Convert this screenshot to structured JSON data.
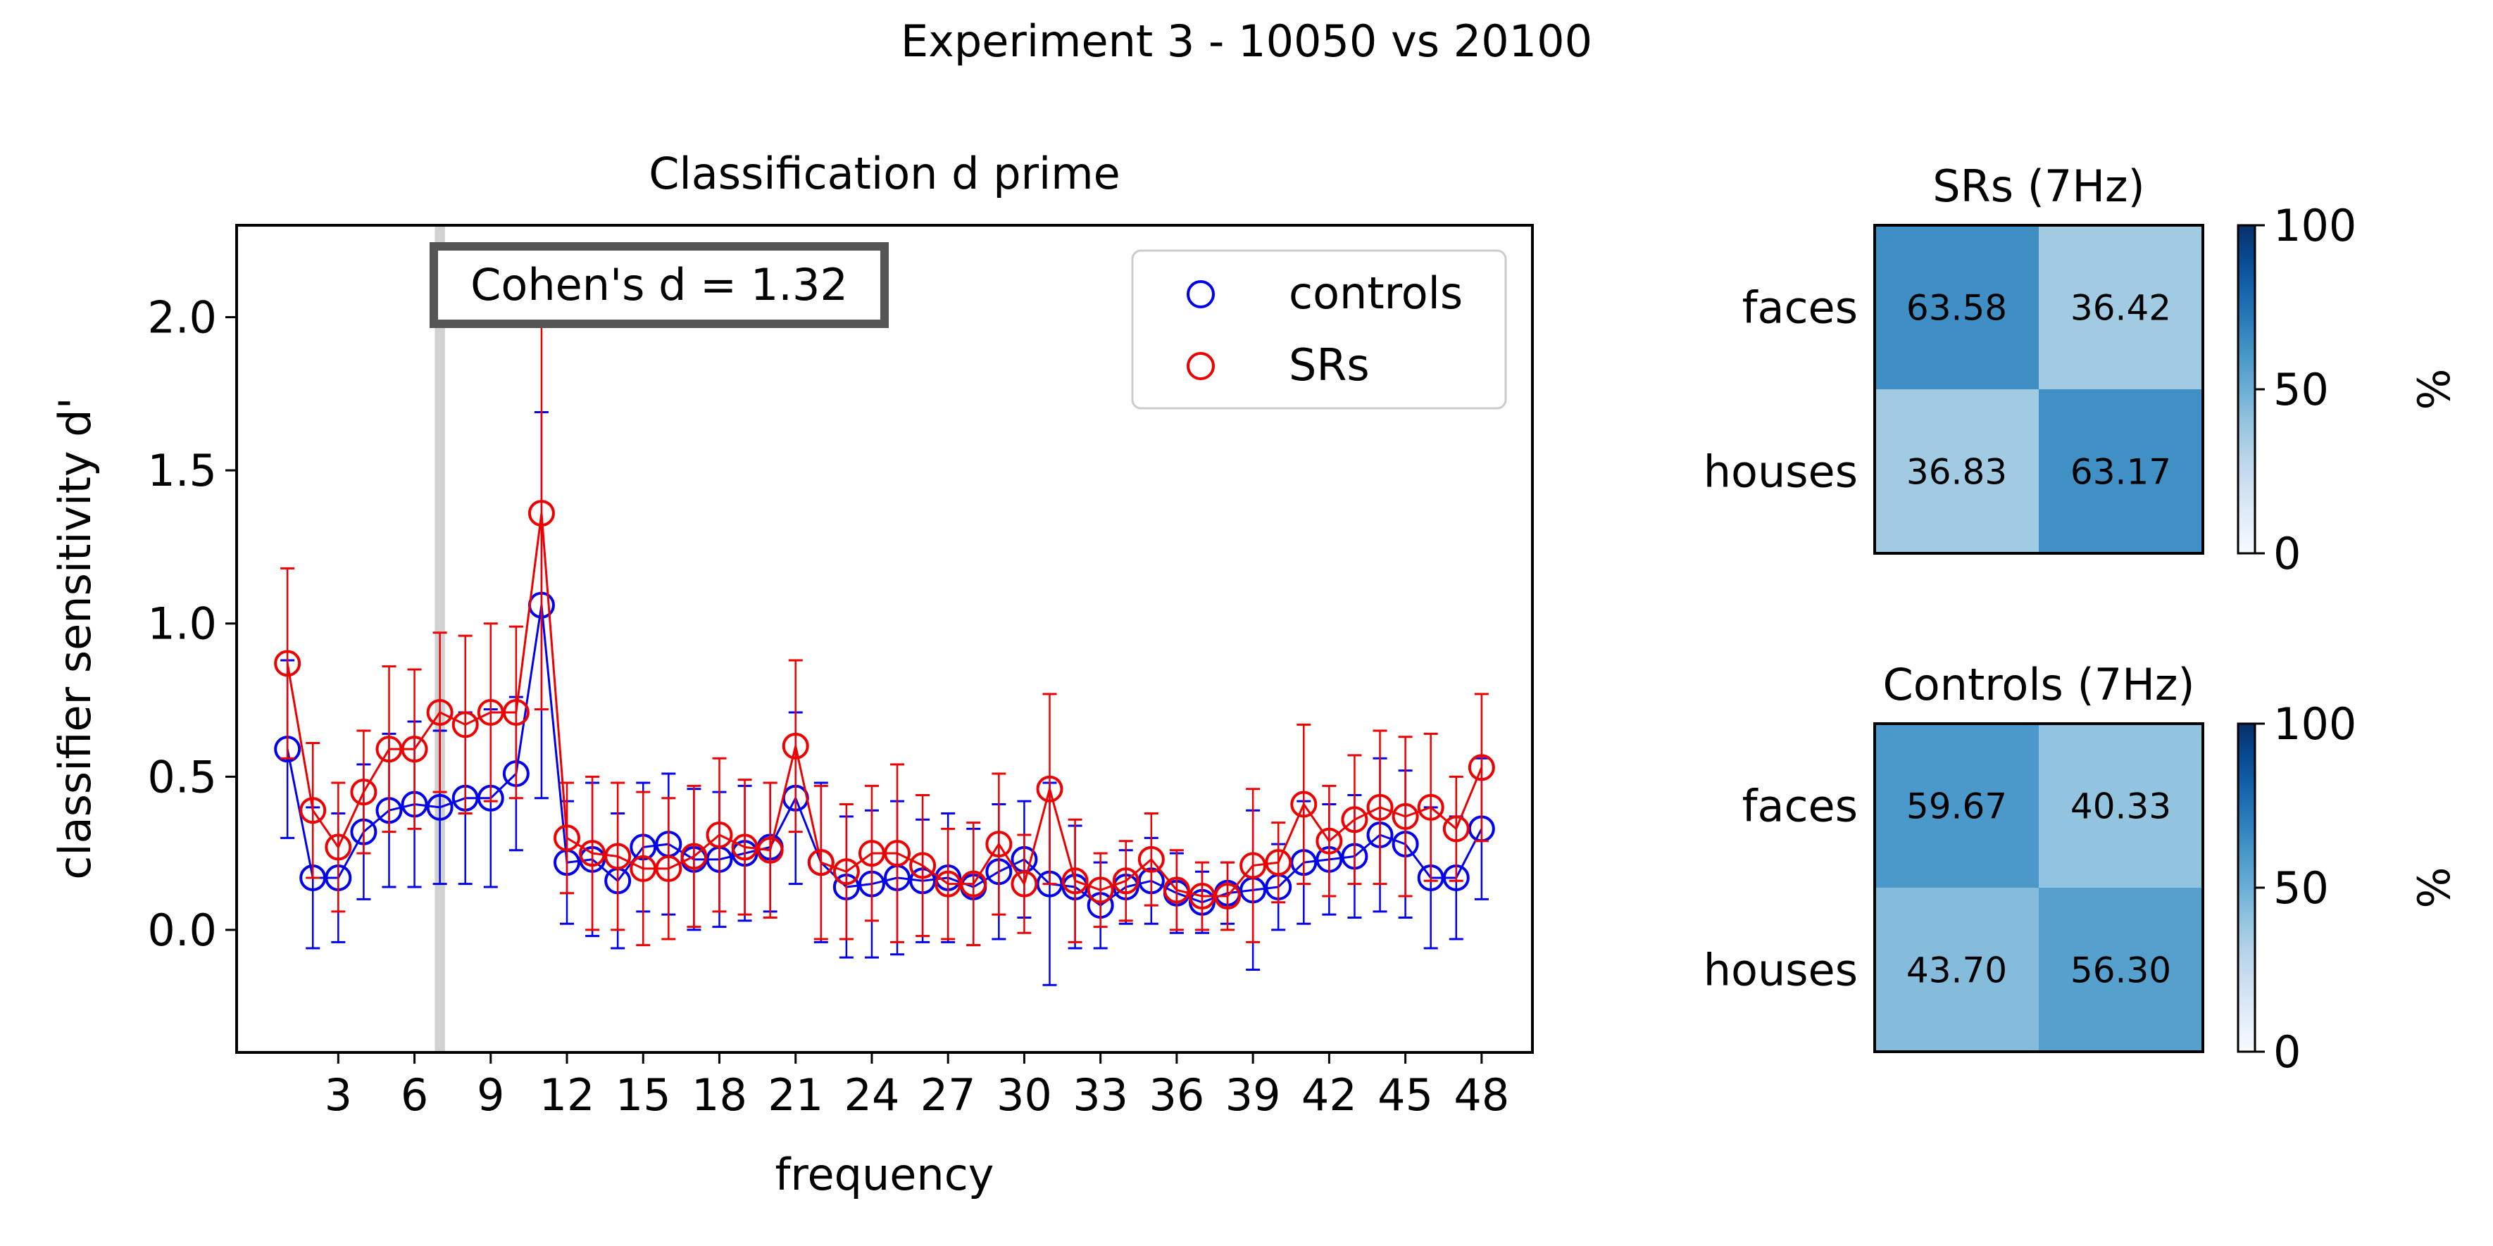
{
  "figure": {
    "suptitle": "Experiment 3 - 10050 vs 20100"
  },
  "chart_data": [
    {
      "type": "line",
      "title": "Classification d prime",
      "xlabel": "frequency",
      "ylabel": "classifier sensitivity d'",
      "xlim": [
        -1.0,
        50.0
      ],
      "ylim": [
        -0.4,
        2.3
      ],
      "xticks": [
        3,
        6,
        9,
        12,
        15,
        18,
        21,
        24,
        27,
        30,
        33,
        36,
        39,
        42,
        45,
        48
      ],
      "yticks": [
        0.0,
        0.5,
        1.0,
        1.5,
        2.0
      ],
      "ytick_labels": [
        "0.0",
        "0.5",
        "1.0",
        "1.5",
        "2.0"
      ],
      "highlight_band": [
        6.8,
        7.2
      ],
      "annotation": "Cohen's d = 1.32",
      "legend_position": "top-right",
      "x": [
        1,
        2,
        3,
        4,
        5,
        6,
        7,
        8,
        9,
        10,
        11,
        12,
        13,
        14,
        15,
        16,
        17,
        18,
        19,
        20,
        21,
        22,
        23,
        24,
        25,
        26,
        27,
        28,
        29,
        30,
        31,
        32,
        33,
        34,
        35,
        36,
        37,
        38,
        39,
        40,
        41,
        42,
        43,
        44,
        45,
        46,
        47,
        48
      ],
      "series": [
        {
          "name": "controls",
          "color": "#0000ee",
          "values": [
            0.59,
            0.17,
            0.17,
            0.32,
            0.39,
            0.41,
            0.4,
            0.43,
            0.43,
            0.51,
            1.06,
            0.22,
            0.23,
            0.16,
            0.27,
            0.28,
            0.23,
            0.23,
            0.25,
            0.27,
            0.43,
            0.22,
            0.14,
            0.15,
            0.17,
            0.16,
            0.17,
            0.14,
            0.19,
            0.23,
            0.15,
            0.14,
            0.08,
            0.14,
            0.16,
            0.12,
            0.09,
            0.12,
            0.13,
            0.14,
            0.22,
            0.23,
            0.24,
            0.31,
            0.28,
            0.17,
            0.17,
            0.33
          ],
          "errors": [
            0.29,
            0.23,
            0.21,
            0.22,
            0.25,
            0.27,
            0.25,
            0.28,
            0.29,
            0.25,
            0.63,
            0.2,
            0.25,
            0.22,
            0.21,
            0.23,
            0.23,
            0.22,
            0.22,
            0.21,
            0.28,
            0.26,
            0.23,
            0.24,
            0.25,
            0.2,
            0.21,
            0.19,
            0.22,
            0.19,
            0.33,
            0.2,
            0.14,
            0.12,
            0.14,
            0.13,
            0.1,
            0.1,
            0.26,
            0.14,
            0.2,
            0.18,
            0.2,
            0.25,
            0.24,
            0.23,
            0.2,
            0.23
          ]
        },
        {
          "name": "SRs",
          "color": "#ee0000",
          "values": [
            0.87,
            0.39,
            0.27,
            0.45,
            0.59,
            0.59,
            0.71,
            0.67,
            0.71,
            0.71,
            1.36,
            0.3,
            0.25,
            0.24,
            0.2,
            0.2,
            0.24,
            0.31,
            0.27,
            0.26,
            0.6,
            0.22,
            0.19,
            0.25,
            0.25,
            0.21,
            0.15,
            0.15,
            0.28,
            0.15,
            0.46,
            0.16,
            0.13,
            0.16,
            0.23,
            0.13,
            0.11,
            0.11,
            0.21,
            0.22,
            0.41,
            0.29,
            0.36,
            0.4,
            0.37,
            0.4,
            0.33,
            0.53
          ],
          "errors": [
            0.31,
            0.22,
            0.21,
            0.2,
            0.27,
            0.26,
            0.26,
            0.29,
            0.29,
            0.28,
            0.64,
            0.18,
            0.25,
            0.24,
            0.25,
            0.23,
            0.23,
            0.25,
            0.22,
            0.22,
            0.28,
            0.25,
            0.22,
            0.22,
            0.29,
            0.23,
            0.18,
            0.2,
            0.23,
            0.16,
            0.31,
            0.2,
            0.12,
            0.13,
            0.15,
            0.13,
            0.11,
            0.11,
            0.25,
            0.13,
            0.26,
            0.18,
            0.21,
            0.25,
            0.26,
            0.24,
            0.17,
            0.24
          ]
        }
      ]
    },
    {
      "type": "heatmap",
      "title": "SRs (7Hz)",
      "row_labels": [
        "faces",
        "houses"
      ],
      "values": [
        [
          63.58,
          36.42
        ],
        [
          36.83,
          63.17
        ]
      ],
      "value_labels": [
        [
          "63.58",
          "36.42"
        ],
        [
          "36.83",
          "63.17"
        ]
      ],
      "colorbar": {
        "label": "%",
        "range": [
          0,
          100
        ],
        "ticks": [
          "0",
          "50",
          "100"
        ]
      }
    },
    {
      "type": "heatmap",
      "title": "Controls (7Hz)",
      "row_labels": [
        "faces",
        "houses"
      ],
      "values": [
        [
          59.67,
          40.33
        ],
        [
          43.7,
          56.3
        ]
      ],
      "value_labels": [
        [
          "59.67",
          "40.33"
        ],
        [
          "43.70",
          "56.30"
        ]
      ],
      "colorbar": {
        "label": "%",
        "range": [
          0,
          100
        ],
        "ticks": [
          "0",
          "50",
          "100"
        ]
      }
    }
  ]
}
